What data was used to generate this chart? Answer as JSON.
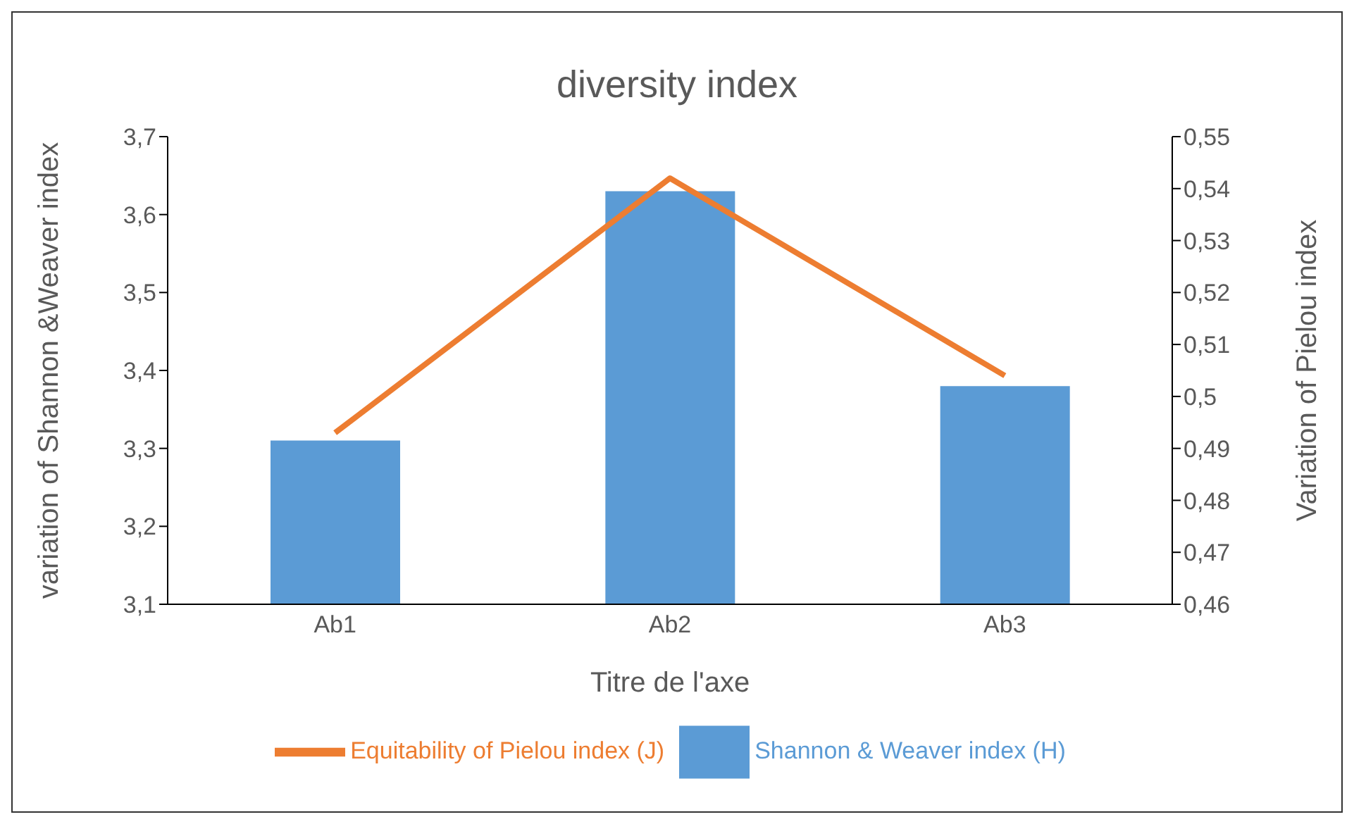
{
  "chart_data": {
    "type": "bar",
    "title": "diversity index",
    "xlabel": "Titre de l'axe",
    "ylabel": "variation of Shannon &Weaver index",
    "y2label": "Variation of Pielou index",
    "categories": [
      "Ab1",
      "Ab2",
      "Ab3"
    ],
    "series": [
      {
        "name": "Shannon & Weaver index  (H)",
        "color": "#5b9bd5",
        "values": [
          3.31,
          3.63,
          3.38
        ]
      },
      {
        "name": "Equitability of Pielou index (J)",
        "type": "line",
        "axis": "y2",
        "color": "#ed7d31",
        "values": [
          0.493,
          0.542,
          0.504
        ]
      }
    ],
    "ylim": [
      3.1,
      3.7
    ],
    "yticks": [
      {
        "value": 3.1,
        "label": "3,1"
      },
      {
        "value": 3.2,
        "label": "3,2"
      },
      {
        "value": 3.3,
        "label": "3,3"
      },
      {
        "value": 3.4,
        "label": "3,4"
      },
      {
        "value": 3.5,
        "label": "3,5"
      },
      {
        "value": 3.6,
        "label": "3,6"
      },
      {
        "value": 3.7,
        "label": "3,7"
      }
    ],
    "y2lim": [
      0.46,
      0.55
    ],
    "y2ticks": [
      {
        "value": 0.46,
        "label": "0,46"
      },
      {
        "value": 0.47,
        "label": "0,47"
      },
      {
        "value": 0.48,
        "label": "0,48"
      },
      {
        "value": 0.49,
        "label": "0,49"
      },
      {
        "value": 0.5,
        "label": "0,5"
      },
      {
        "value": 0.51,
        "label": "0,51"
      },
      {
        "value": 0.52,
        "label": "0,52"
      },
      {
        "value": 0.53,
        "label": "0,53"
      },
      {
        "value": 0.54,
        "label": "0,54"
      },
      {
        "value": 0.55,
        "label": "0,55"
      }
    ],
    "grid": false,
    "legend": "bottom",
    "marker": "none"
  }
}
